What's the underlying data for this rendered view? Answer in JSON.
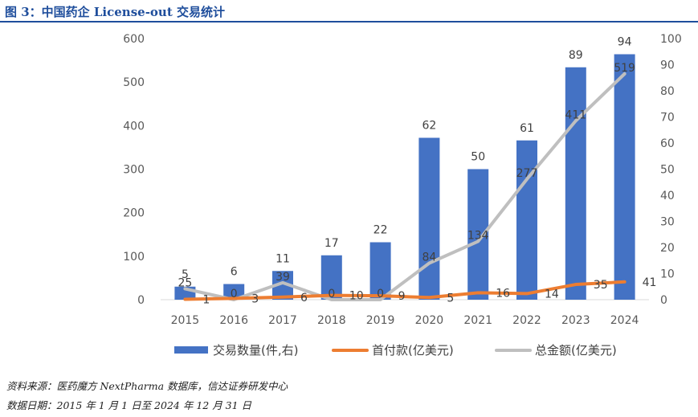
{
  "figure": {
    "title": "图 3：中国药企 License-out 交易统计",
    "source": "资料来源：医药魔方 NextPharma 数据库，信达证券研发中心",
    "date_range": "数据日期：2015 年 1 月 1 日至 2024 年 12 月 31 日"
  },
  "colors": {
    "bar": "#4472c4",
    "upfront": "#ed7d31",
    "total": "#bfbfbf",
    "title": "#1f4e9c"
  },
  "chart_data": {
    "type": "bar",
    "categories": [
      "2015",
      "2016",
      "2017",
      "2018",
      "2019",
      "2020",
      "2021",
      "2022",
      "2023",
      "2024"
    ],
    "series": [
      {
        "name": "交易数量(件,右)",
        "kind": "bar",
        "axis": "right",
        "values": [
          5,
          6,
          11,
          17,
          22,
          62,
          50,
          61,
          89,
          94
        ]
      },
      {
        "name": "首付款(亿美元)",
        "kind": "line",
        "axis": "left",
        "values": [
          1,
          3,
          6,
          10,
          9,
          5,
          16,
          14,
          35,
          41
        ]
      },
      {
        "name": "总金额(亿美元)",
        "kind": "line",
        "axis": "left",
        "values": [
          25,
          0,
          39,
          0,
          0,
          84,
          134,
          277,
          411,
          519
        ]
      }
    ],
    "y_left": {
      "ticks": [
        "0",
        "100",
        "200",
        "300",
        "400",
        "500",
        "600"
      ],
      "min": 0,
      "max": 600
    },
    "y_right": {
      "ticks": [
        "0",
        "10",
        "20",
        "30",
        "40",
        "50",
        "60",
        "70",
        "80",
        "90",
        "100"
      ],
      "min": 0,
      "max": 100
    },
    "legend_position": "bottom"
  }
}
